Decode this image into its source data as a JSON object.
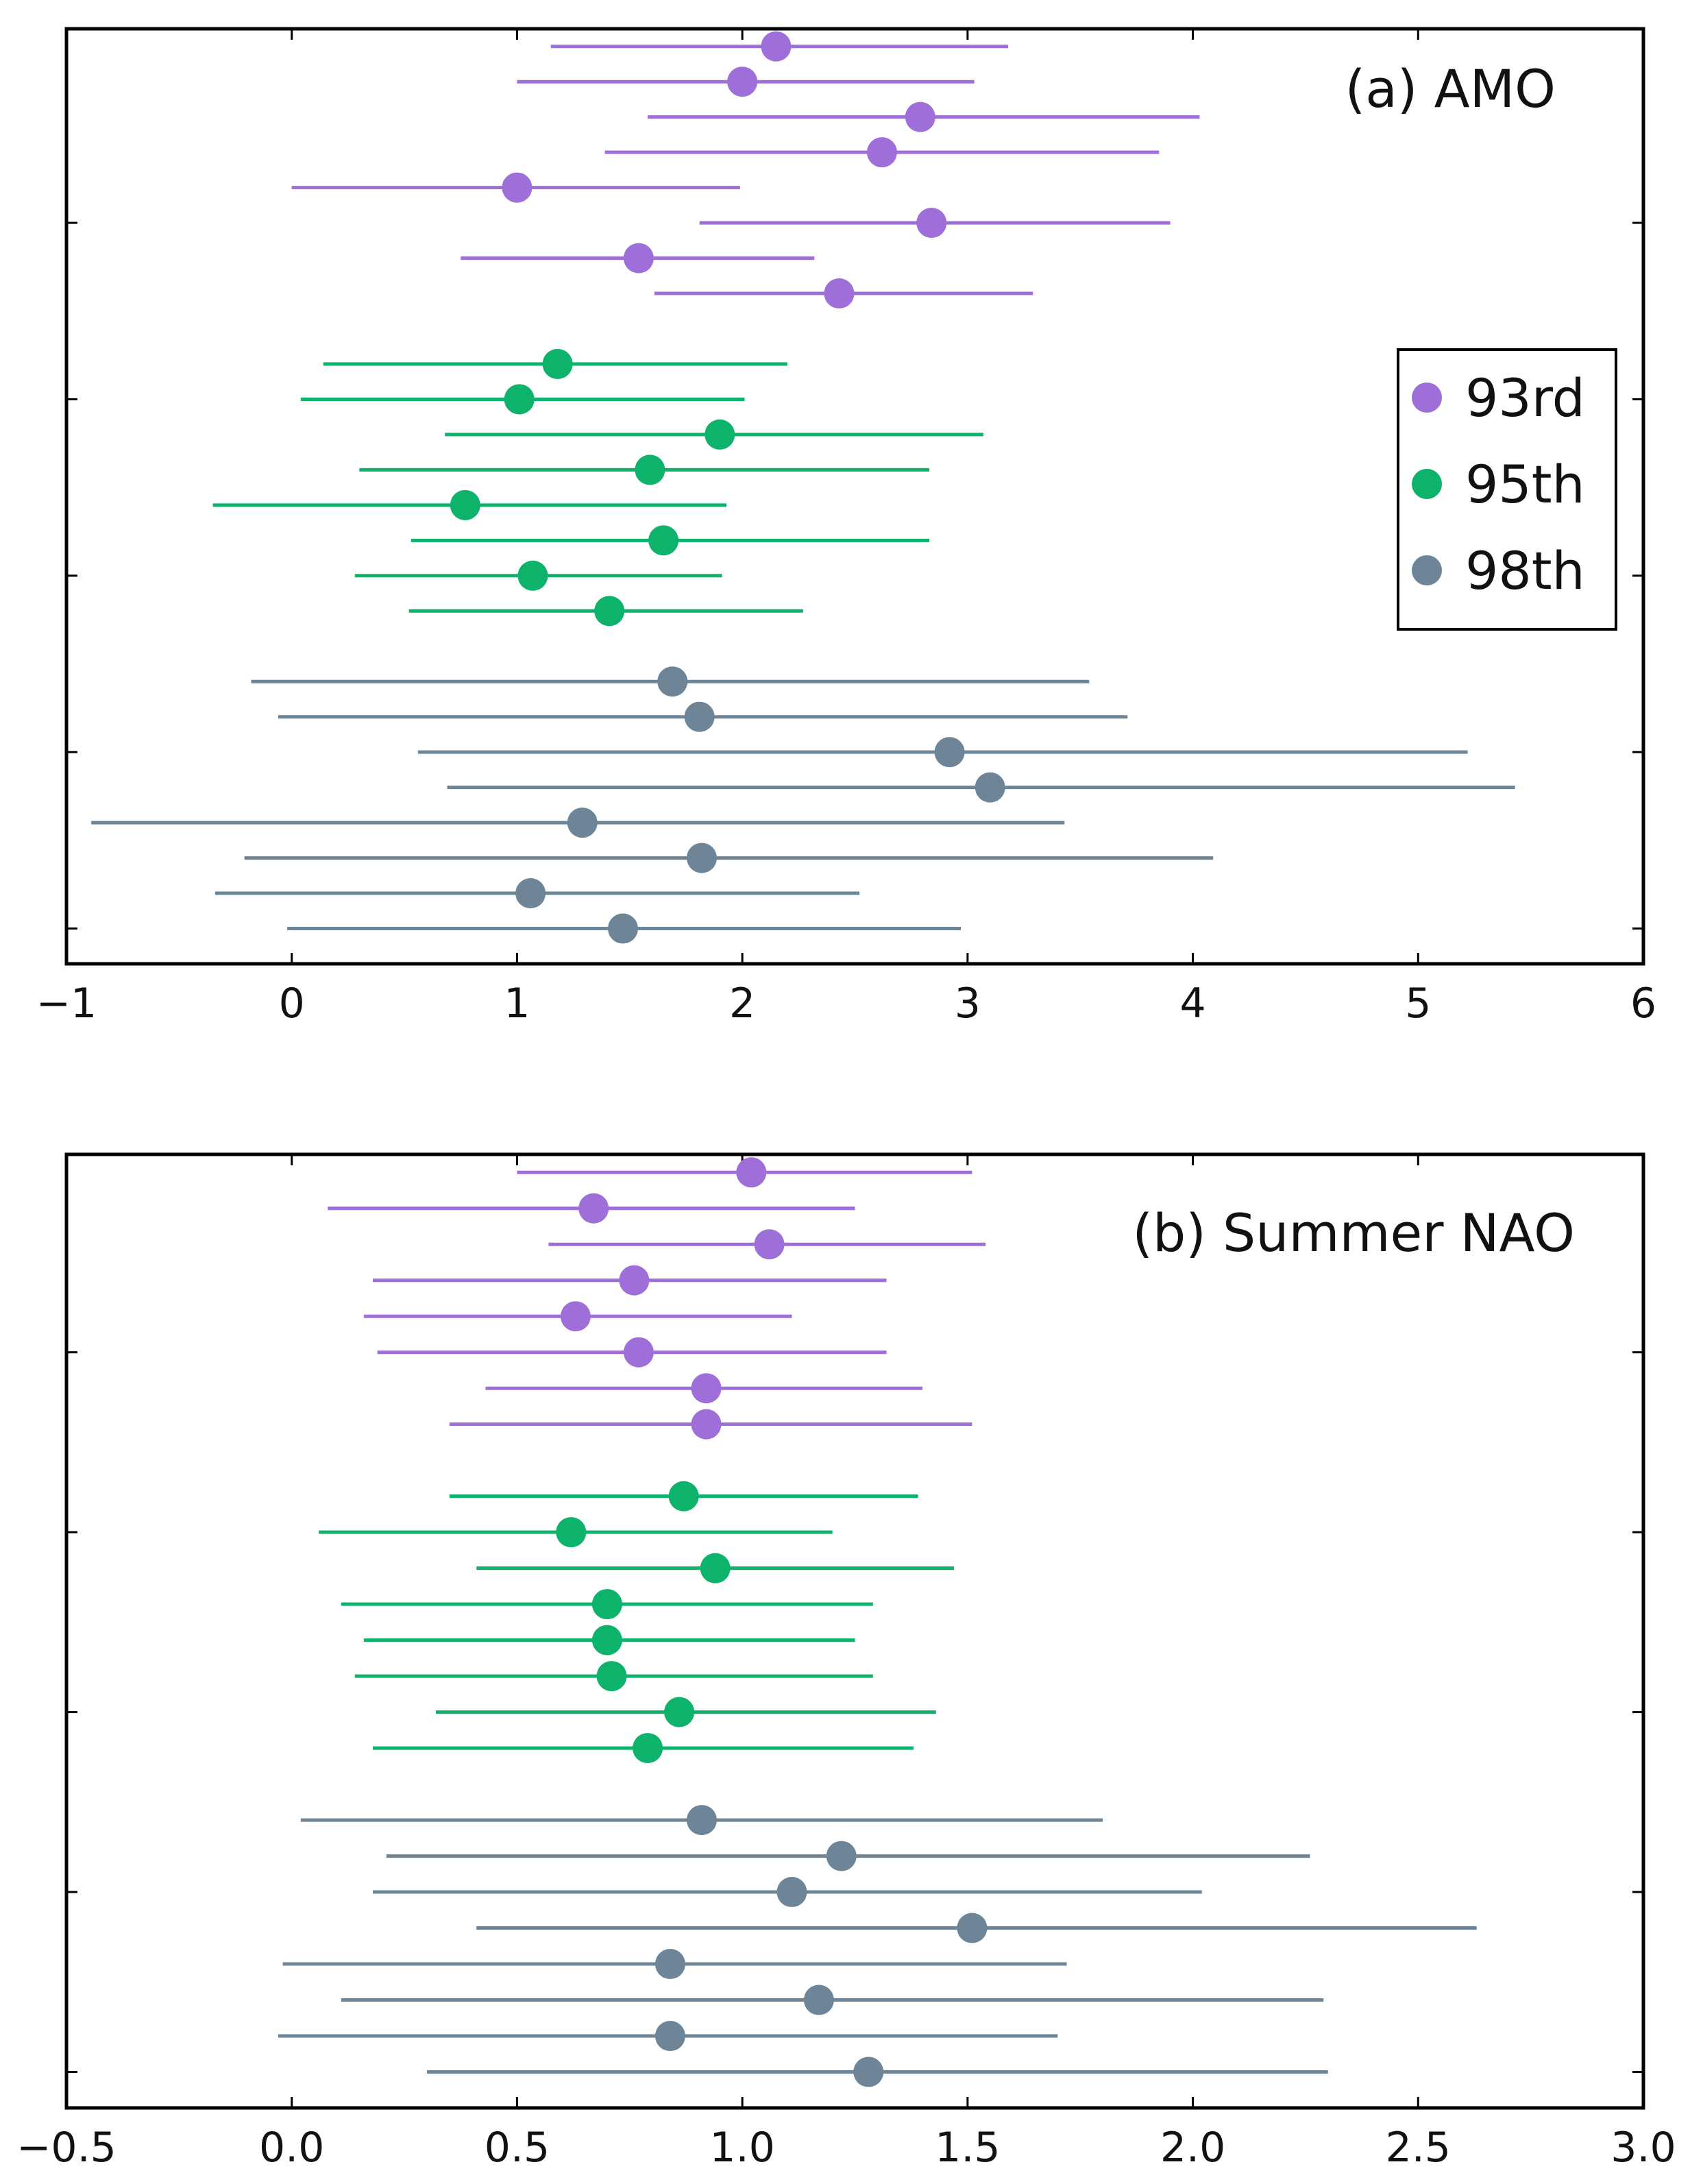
{
  "colors": {
    "93rd": "#9f6fd9",
    "95th": "#0db26b",
    "98th": "#6d8596"
  },
  "chart_data": [
    {
      "id": "amo",
      "type": "scatter",
      "title": "(a) AMO",
      "xlim": [
        -1,
        6
      ],
      "xticks": [
        -1,
        0,
        1,
        2,
        3,
        4,
        5,
        6
      ],
      "xtick_labels": [
        "−1",
        "0",
        "1",
        "2",
        "3",
        "4",
        "5",
        "6"
      ],
      "ylim": [
        0,
        26.5
      ],
      "yticks": [
        1,
        6,
        11,
        16,
        21
      ],
      "legend": {
        "position": "right",
        "entries": [
          "93rd",
          "95th",
          "98th"
        ]
      },
      "series": [
        {
          "name": "93rd",
          "points": [
            {
              "y": 26,
              "value": 2.15,
              "low": 1.15,
              "high": 3.18
            },
            {
              "y": 25,
              "value": 2.0,
              "low": 1.0,
              "high": 3.03
            },
            {
              "y": 24,
              "value": 2.79,
              "low": 1.58,
              "high": 4.03
            },
            {
              "y": 23,
              "value": 2.62,
              "low": 1.39,
              "high": 3.85
            },
            {
              "y": 22,
              "value": 1.0,
              "low": 0.0,
              "high": 1.99
            },
            {
              "y": 21,
              "value": 2.84,
              "low": 1.81,
              "high": 3.9
            },
            {
              "y": 20,
              "value": 1.54,
              "low": 0.75,
              "high": 2.32
            },
            {
              "y": 19,
              "value": 2.43,
              "low": 1.61,
              "high": 3.29
            }
          ]
        },
        {
          "name": "95th",
          "points": [
            {
              "y": 17,
              "value": 1.18,
              "low": 0.14,
              "high": 2.2
            },
            {
              "y": 16,
              "value": 1.01,
              "low": 0.04,
              "high": 2.01
            },
            {
              "y": 15,
              "value": 1.9,
              "low": 0.68,
              "high": 3.07
            },
            {
              "y": 14,
              "value": 1.59,
              "low": 0.3,
              "high": 2.83
            },
            {
              "y": 13,
              "value": 0.77,
              "low": -0.35,
              "high": 1.93
            },
            {
              "y": 12,
              "value": 1.65,
              "low": 0.53,
              "high": 2.83
            },
            {
              "y": 11,
              "value": 1.07,
              "low": 0.28,
              "high": 1.91
            },
            {
              "y": 10,
              "value": 1.41,
              "low": 0.52,
              "high": 2.27
            }
          ]
        },
        {
          "name": "98th",
          "points": [
            {
              "y": 8,
              "value": 1.69,
              "low": -0.18,
              "high": 3.54
            },
            {
              "y": 7,
              "value": 1.81,
              "low": -0.06,
              "high": 3.71
            },
            {
              "y": 6,
              "value": 2.92,
              "low": 0.56,
              "high": 5.22
            },
            {
              "y": 5,
              "value": 3.1,
              "low": 0.69,
              "high": 5.43
            },
            {
              "y": 4,
              "value": 1.29,
              "low": -0.89,
              "high": 3.43
            },
            {
              "y": 3,
              "value": 1.82,
              "low": -0.21,
              "high": 4.09
            },
            {
              "y": 2,
              "value": 1.06,
              "low": -0.34,
              "high": 2.52
            },
            {
              "y": 1,
              "value": 1.47,
              "low": -0.02,
              "high": 2.97
            }
          ]
        }
      ]
    },
    {
      "id": "summer-nao",
      "type": "scatter",
      "title": "(b) Summer NAO",
      "xlim": [
        -0.5,
        3.0
      ],
      "xticks": [
        -0.5,
        0.0,
        0.5,
        1.0,
        1.5,
        2.0,
        2.5,
        3.0
      ],
      "xtick_labels": [
        "−0.5",
        "0.0",
        "0.5",
        "1.0",
        "1.5",
        "2.0",
        "2.5",
        "3.0"
      ],
      "ylim": [
        0,
        26.5
      ],
      "yticks": [
        1,
        6,
        11,
        16,
        21
      ],
      "legend": null,
      "series": [
        {
          "name": "93rd",
          "points": [
            {
              "y": 26,
              "value": 1.02,
              "low": 0.5,
              "high": 1.51
            },
            {
              "y": 25,
              "value": 0.67,
              "low": 0.08,
              "high": 1.25
            },
            {
              "y": 24,
              "value": 1.06,
              "low": 0.57,
              "high": 1.54
            },
            {
              "y": 23,
              "value": 0.76,
              "low": 0.18,
              "high": 1.32
            },
            {
              "y": 22,
              "value": 0.63,
              "low": 0.16,
              "high": 1.11
            },
            {
              "y": 21,
              "value": 0.77,
              "low": 0.19,
              "high": 1.32
            },
            {
              "y": 20,
              "value": 0.92,
              "low": 0.43,
              "high": 1.4
            },
            {
              "y": 19,
              "value": 0.92,
              "low": 0.35,
              "high": 1.51
            }
          ]
        },
        {
          "name": "95th",
          "points": [
            {
              "y": 17,
              "value": 0.87,
              "low": 0.35,
              "high": 1.39
            },
            {
              "y": 16,
              "value": 0.62,
              "low": 0.06,
              "high": 1.2
            },
            {
              "y": 15,
              "value": 0.94,
              "low": 0.41,
              "high": 1.47
            },
            {
              "y": 14,
              "value": 0.7,
              "low": 0.11,
              "high": 1.29
            },
            {
              "y": 13,
              "value": 0.7,
              "low": 0.16,
              "high": 1.25
            },
            {
              "y": 12,
              "value": 0.71,
              "low": 0.14,
              "high": 1.29
            },
            {
              "y": 11,
              "value": 0.86,
              "low": 0.32,
              "high": 1.43
            },
            {
              "y": 10,
              "value": 0.79,
              "low": 0.18,
              "high": 1.38
            }
          ]
        },
        {
          "name": "98th",
          "points": [
            {
              "y": 8,
              "value": 0.91,
              "low": 0.02,
              "high": 1.8
            },
            {
              "y": 7,
              "value": 1.22,
              "low": 0.21,
              "high": 2.26
            },
            {
              "y": 6,
              "value": 1.11,
              "low": 0.18,
              "high": 2.02
            },
            {
              "y": 5,
              "value": 1.51,
              "low": 0.41,
              "high": 2.63
            },
            {
              "y": 4,
              "value": 0.84,
              "low": -0.02,
              "high": 1.72
            },
            {
              "y": 3,
              "value": 1.17,
              "low": 0.11,
              "high": 2.29
            },
            {
              "y": 2,
              "value": 0.84,
              "low": -0.03,
              "high": 1.7
            },
            {
              "y": 1,
              "value": 1.28,
              "low": 0.3,
              "high": 2.3
            }
          ]
        }
      ]
    }
  ]
}
